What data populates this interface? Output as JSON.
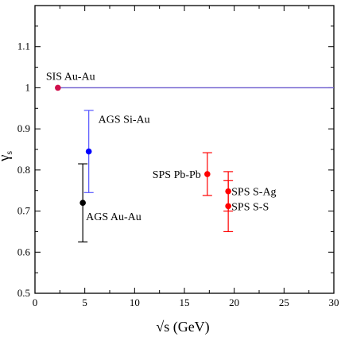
{
  "chart_data": {
    "type": "scatter",
    "xlabel": "√s (GeV)",
    "ylabel": "γs",
    "ylabel_main": "γ",
    "ylabel_sub": "s",
    "xlim": [
      0,
      30
    ],
    "ylim": [
      0.5,
      1.2
    ],
    "xticks": [
      0,
      5,
      10,
      15,
      20,
      25,
      30
    ],
    "yticks": [
      0.5,
      0.6,
      0.7,
      0.8,
      0.9,
      1.0,
      1.1
    ],
    "xtick_labels": [
      "0",
      "5",
      "10",
      "15",
      "20",
      "25",
      "30"
    ],
    "ytick_labels": [
      "0.5",
      "0.6",
      "0.7",
      "0.8",
      "0.9",
      "1",
      "1.1"
    ],
    "reference_line": {
      "y": 1.0,
      "color": "#6a5acd"
    },
    "points": [
      {
        "label": "SIS Au-Au",
        "x": 2.3,
        "y": 1.0,
        "err_low": 0.0,
        "err_high": 0.0,
        "color": "#d0104c",
        "label_side": "above"
      },
      {
        "label": "AGS Si-Au",
        "x": 5.4,
        "y": 0.845,
        "err_low": 0.1,
        "err_high": 0.1,
        "color": "#0000ff",
        "errcolor": "#5555ff",
        "label_side": "right-up"
      },
      {
        "label": "AGS Au-Au",
        "x": 4.8,
        "y": 0.72,
        "err_low": 0.095,
        "err_high": 0.095,
        "color": "#000000",
        "errcolor": "#000000",
        "label_side": "right-down"
      },
      {
        "label": "SPS Pb-Pb",
        "x": 17.3,
        "y": 0.79,
        "err_low": 0.052,
        "err_high": 0.052,
        "color": "#ff0000",
        "errcolor": "#ff0000",
        "label_side": "left"
      },
      {
        "label": "SPS S-Ag",
        "x": 19.4,
        "y": 0.748,
        "err_low": 0.048,
        "err_high": 0.048,
        "color": "#ff0000",
        "errcolor": "#ff0000",
        "label_side": "right"
      },
      {
        "label": "SPS S-S",
        "x": 19.4,
        "y": 0.712,
        "err_low": 0.062,
        "err_high": 0.062,
        "color": "#ff0000",
        "errcolor": "#ff0000",
        "label_side": "right"
      }
    ]
  }
}
